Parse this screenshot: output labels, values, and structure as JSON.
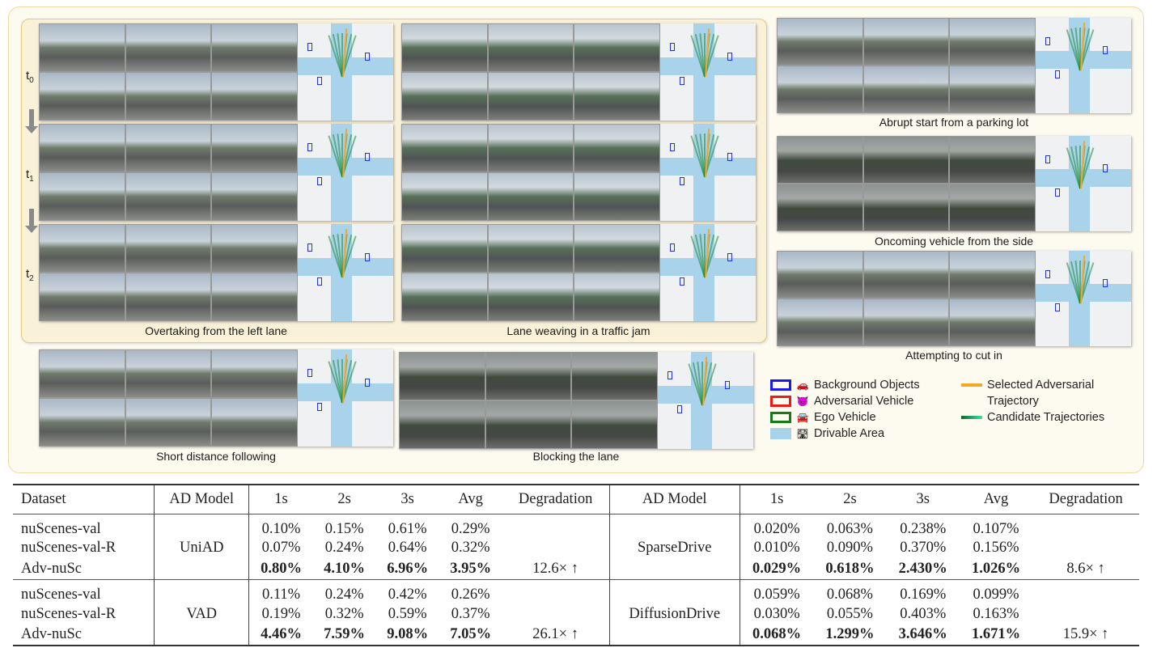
{
  "figure": {
    "time_labels": [
      "t",
      "t",
      "t"
    ],
    "time_subs": [
      "0",
      "1",
      "2"
    ],
    "scenarios": [
      {
        "caption": "Overtaking from the left lane"
      },
      {
        "caption": "Lane weaving in a traffic jam"
      },
      {
        "caption": "Abrupt start from a parking lot"
      },
      {
        "caption": "Oncoming vehicle  from the side"
      },
      {
        "caption": "Attempting to cut in"
      },
      {
        "caption": "Short distance following"
      },
      {
        "caption": "Blocking the lane"
      }
    ],
    "legend": {
      "items": [
        {
          "label": "Background Objects",
          "color": "#1a1aee",
          "icon": "car-icon",
          "glyph": "🚗"
        },
        {
          "label": "Adversarial Vehicle",
          "color": "#ee1a1a",
          "icon": "devil-face-icon",
          "glyph": "😈"
        },
        {
          "label": "Ego Vehicle",
          "color": "#1a7a1a",
          "icon": "car-front-icon",
          "glyph": "🚘"
        },
        {
          "label": "Drivable Area",
          "color": "#a8d3ea",
          "icon": "road-icon",
          "glyph": "🛣"
        }
      ],
      "lines": [
        {
          "label": "Selected Adversarial",
          "label2": "Trajectory",
          "color": "#f5a623"
        },
        {
          "label": "Candidate Trajectories",
          "color": "#1f8a3a"
        }
      ]
    }
  },
  "table": {
    "headers": [
      "Dataset",
      "AD Model",
      "1s",
      "2s",
      "3s",
      "Avg",
      "Degradation",
      "AD Model",
      "1s",
      "2s",
      "3s",
      "Avg",
      "Degradation"
    ],
    "groups": [
      {
        "model_left": "UniAD",
        "model_right": "SparseDrive",
        "degradation_left": "12.6× ↑",
        "degradation_right": "8.6× ↑",
        "rows": [
          {
            "dataset": "nuScenes-val",
            "left": [
              "0.10%",
              "0.15%",
              "0.61%",
              "0.29%"
            ],
            "right": [
              "0.020%",
              "0.063%",
              "0.238%",
              "0.107%"
            ]
          },
          {
            "dataset": "nuScenes-val-R",
            "left": [
              "0.07%",
              "0.24%",
              "0.64%",
              "0.32%"
            ],
            "right": [
              "0.010%",
              "0.090%",
              "0.370%",
              "0.156%"
            ]
          },
          {
            "dataset": "Adv-nuSc",
            "left": [
              "0.80%",
              "4.10%",
              "6.96%",
              "3.95%"
            ],
            "right": [
              "0.029%",
              "0.618%",
              "2.430%",
              "1.026%"
            ]
          }
        ]
      },
      {
        "model_left": "VAD",
        "model_right": "DiffusionDrive",
        "degradation_left": "26.1× ↑",
        "degradation_right": "15.9× ↑",
        "rows": [
          {
            "dataset": "nuScenes-val",
            "left": [
              "0.11%",
              "0.24%",
              "0.42%",
              "0.26%"
            ],
            "right": [
              "0.059%",
              "0.068%",
              "0.169%",
              "0.099%"
            ]
          },
          {
            "dataset": "nuScenes-val-R",
            "left": [
              "0.19%",
              "0.32%",
              "0.59%",
              "0.37%"
            ],
            "right": [
              "0.030%",
              "0.055%",
              "0.403%",
              "0.163%"
            ]
          },
          {
            "dataset": "Adv-nuSc",
            "left": [
              "4.46%",
              "7.59%",
              "9.08%",
              "7.05%"
            ],
            "right": [
              "0.068%",
              "1.299%",
              "3.646%",
              "1.671%"
            ]
          }
        ]
      }
    ]
  }
}
